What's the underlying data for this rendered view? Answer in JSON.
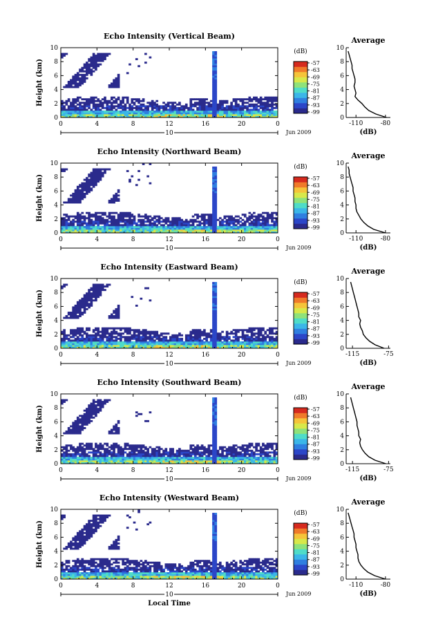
{
  "colors": {
    "colormap": [
      "#2a2a8c",
      "#2b46c8",
      "#2f7fe0",
      "#3bb6e8",
      "#4fdcc8",
      "#8fe27a",
      "#d8e84a",
      "#f5c43a",
      "#f07a2a",
      "#d62a1e"
    ]
  },
  "chart_data": [
    {
      "type": "heatmap",
      "title": "Echo Intensity (Vertical Beam)",
      "ylabel": "Height (km)",
      "ylim": [
        0,
        10
      ],
      "yticks": [
        "0",
        "2",
        "4",
        "6",
        "8",
        "10"
      ],
      "xticks": [
        "0",
        "4",
        "8",
        "12",
        "16",
        "20",
        "0"
      ],
      "date_marker": "10",
      "date_label": "Jun 2009",
      "colorbar": {
        "unit": "(dB)",
        "ticks": [
          "-57",
          "-63",
          "-69",
          "-75",
          "-81",
          "-87",
          "-93",
          "-99"
        ]
      },
      "average_profile": {
        "title": "Average",
        "xlabel": "(dB)",
        "xticks": [
          "-110",
          "-80"
        ],
        "xlim": [
          -120,
          -75
        ],
        "yticks": [
          "0",
          "2",
          "4",
          "6",
          "8",
          "10"
        ],
        "heights": [
          0,
          0.5,
          1,
          1.5,
          2,
          2.5,
          3,
          3.5,
          4,
          4.5,
          5,
          5.5,
          6,
          6.5,
          7,
          7.5,
          8,
          8.5,
          9,
          9.5
        ],
        "values": [
          -79,
          -90,
          -97,
          -101,
          -104,
          -108,
          -111,
          -110,
          -111,
          -112,
          -111,
          -111,
          -112,
          -113,
          -114,
          -114,
          -115,
          -116,
          -117,
          -118
        ]
      }
    },
    {
      "type": "heatmap",
      "title": "Echo Intensity (Northward Beam)",
      "ylabel": "Height (km)",
      "ylim": [
        0,
        10
      ],
      "yticks": [
        "0",
        "2",
        "4",
        "6",
        "8",
        "10"
      ],
      "xticks": [
        "0",
        "4",
        "8",
        "12",
        "16",
        "20",
        "0"
      ],
      "date_marker": "10",
      "date_label": "Jun 2009",
      "colorbar": {
        "unit": "(dB)",
        "ticks": [
          "-57",
          "-63",
          "-69",
          "-75",
          "-81",
          "-87",
          "-93",
          "-99"
        ]
      },
      "average_profile": {
        "title": "Average",
        "xlabel": "(dB)",
        "xticks": [
          "-110",
          "-80"
        ],
        "xlim": [
          -120,
          -75
        ],
        "yticks": [
          "0",
          "2",
          "4",
          "6",
          "8",
          "10"
        ],
        "heights": [
          0,
          0.5,
          1,
          1.5,
          2,
          2.5,
          3,
          3.5,
          4,
          4.5,
          5,
          5.5,
          6,
          6.5,
          7,
          7.5,
          8,
          8.5,
          9,
          9.5
        ],
        "values": [
          -80,
          -92,
          -98,
          -102,
          -105,
          -107,
          -109,
          -110,
          -110,
          -111,
          -111,
          -112,
          -113,
          -113,
          -114,
          -115,
          -116,
          -117,
          -117,
          -118
        ]
      }
    },
    {
      "type": "heatmap",
      "title": "Echo Intensity (Eastward Beam)",
      "ylabel": "Height (km)",
      "ylim": [
        0,
        10
      ],
      "yticks": [
        "0",
        "2",
        "4",
        "6",
        "8",
        "10"
      ],
      "xticks": [
        "0",
        "4",
        "8",
        "12",
        "16",
        "20",
        "0"
      ],
      "date_marker": "10",
      "date_label": "Jun 2009",
      "colorbar": {
        "unit": "(dB)",
        "ticks": [
          "-57",
          "-63",
          "-69",
          "-75",
          "-81",
          "-87",
          "-93",
          "-99"
        ]
      },
      "average_profile": {
        "title": "Average",
        "xlabel": "(dB)",
        "xticks": [
          "-115",
          "-75"
        ],
        "xlim": [
          -122,
          -73
        ],
        "yticks": [
          "0",
          "2",
          "4",
          "6",
          "8",
          "10"
        ],
        "heights": [
          0,
          0.5,
          1,
          1.5,
          2,
          2.5,
          3,
          3.5,
          4,
          4.5,
          5,
          5.5,
          6,
          6.5,
          7,
          7.5,
          8,
          8.5,
          9,
          9.5
        ],
        "values": [
          -80,
          -90,
          -96,
          -100,
          -103,
          -104,
          -106,
          -107,
          -106,
          -108,
          -108,
          -109,
          -110,
          -111,
          -112,
          -113,
          -114,
          -115,
          -116,
          -117
        ]
      }
    },
    {
      "type": "heatmap",
      "title": "Echo Intensity (Southward Beam)",
      "ylabel": "Height (km)",
      "ylim": [
        0,
        10
      ],
      "yticks": [
        "0",
        "2",
        "4",
        "6",
        "8",
        "10"
      ],
      "xticks": [
        "0",
        "4",
        "8",
        "12",
        "16",
        "20",
        "0"
      ],
      "date_marker": "10",
      "date_label": "Jun 2009",
      "colorbar": {
        "unit": "(dB)",
        "ticks": [
          "-57",
          "-63",
          "-69",
          "-75",
          "-81",
          "-87",
          "-93",
          "-99"
        ]
      },
      "average_profile": {
        "title": "Average",
        "xlabel": "(dB)",
        "xticks": [
          "-115",
          "-75"
        ],
        "xlim": [
          -122,
          -73
        ],
        "yticks": [
          "0",
          "2",
          "4",
          "6",
          "8",
          "10"
        ],
        "heights": [
          0,
          0.5,
          1,
          1.5,
          2,
          2.5,
          3,
          3.5,
          4,
          4.5,
          5,
          5.5,
          6,
          6.5,
          7,
          7.5,
          8,
          8.5,
          9,
          9.5
        ],
        "values": [
          -78,
          -90,
          -97,
          -101,
          -104,
          -106,
          -107,
          -106,
          -108,
          -108,
          -109,
          -110,
          -110,
          -111,
          -112,
          -113,
          -114,
          -115,
          -116,
          -117
        ]
      }
    },
    {
      "type": "heatmap",
      "title": "Echo Intensity (Westward Beam)",
      "ylabel": "Height (km)",
      "ylim": [
        0,
        10
      ],
      "yticks": [
        "0",
        "2",
        "4",
        "6",
        "8",
        "10"
      ],
      "xticks": [
        "0",
        "4",
        "8",
        "12",
        "16",
        "20",
        "0"
      ],
      "date_marker": "10",
      "date_label": "Jun 2009",
      "xlabel": "Local Time",
      "colorbar": {
        "unit": "(dB)",
        "ticks": [
          "-57",
          "-63",
          "-69",
          "-75",
          "-81",
          "-87",
          "-93",
          "-99"
        ]
      },
      "average_profile": {
        "title": "Average",
        "xlabel": "(dB)",
        "xticks": [
          "-110",
          "-80"
        ],
        "xlim": [
          -120,
          -75
        ],
        "yticks": [
          "0",
          "2",
          "4",
          "6",
          "8",
          "10"
        ],
        "heights": [
          0,
          0.5,
          1,
          1.5,
          2,
          2.5,
          3,
          3.5,
          4,
          4.5,
          5,
          5.5,
          6,
          6.5,
          7,
          7.5,
          8,
          8.5,
          9,
          9.5
        ],
        "values": [
          -80,
          -91,
          -98,
          -102,
          -105,
          -107,
          -108,
          -108,
          -109,
          -110,
          -110,
          -111,
          -112,
          -112,
          -113,
          -114,
          -115,
          -116,
          -117,
          -118
        ]
      }
    }
  ]
}
